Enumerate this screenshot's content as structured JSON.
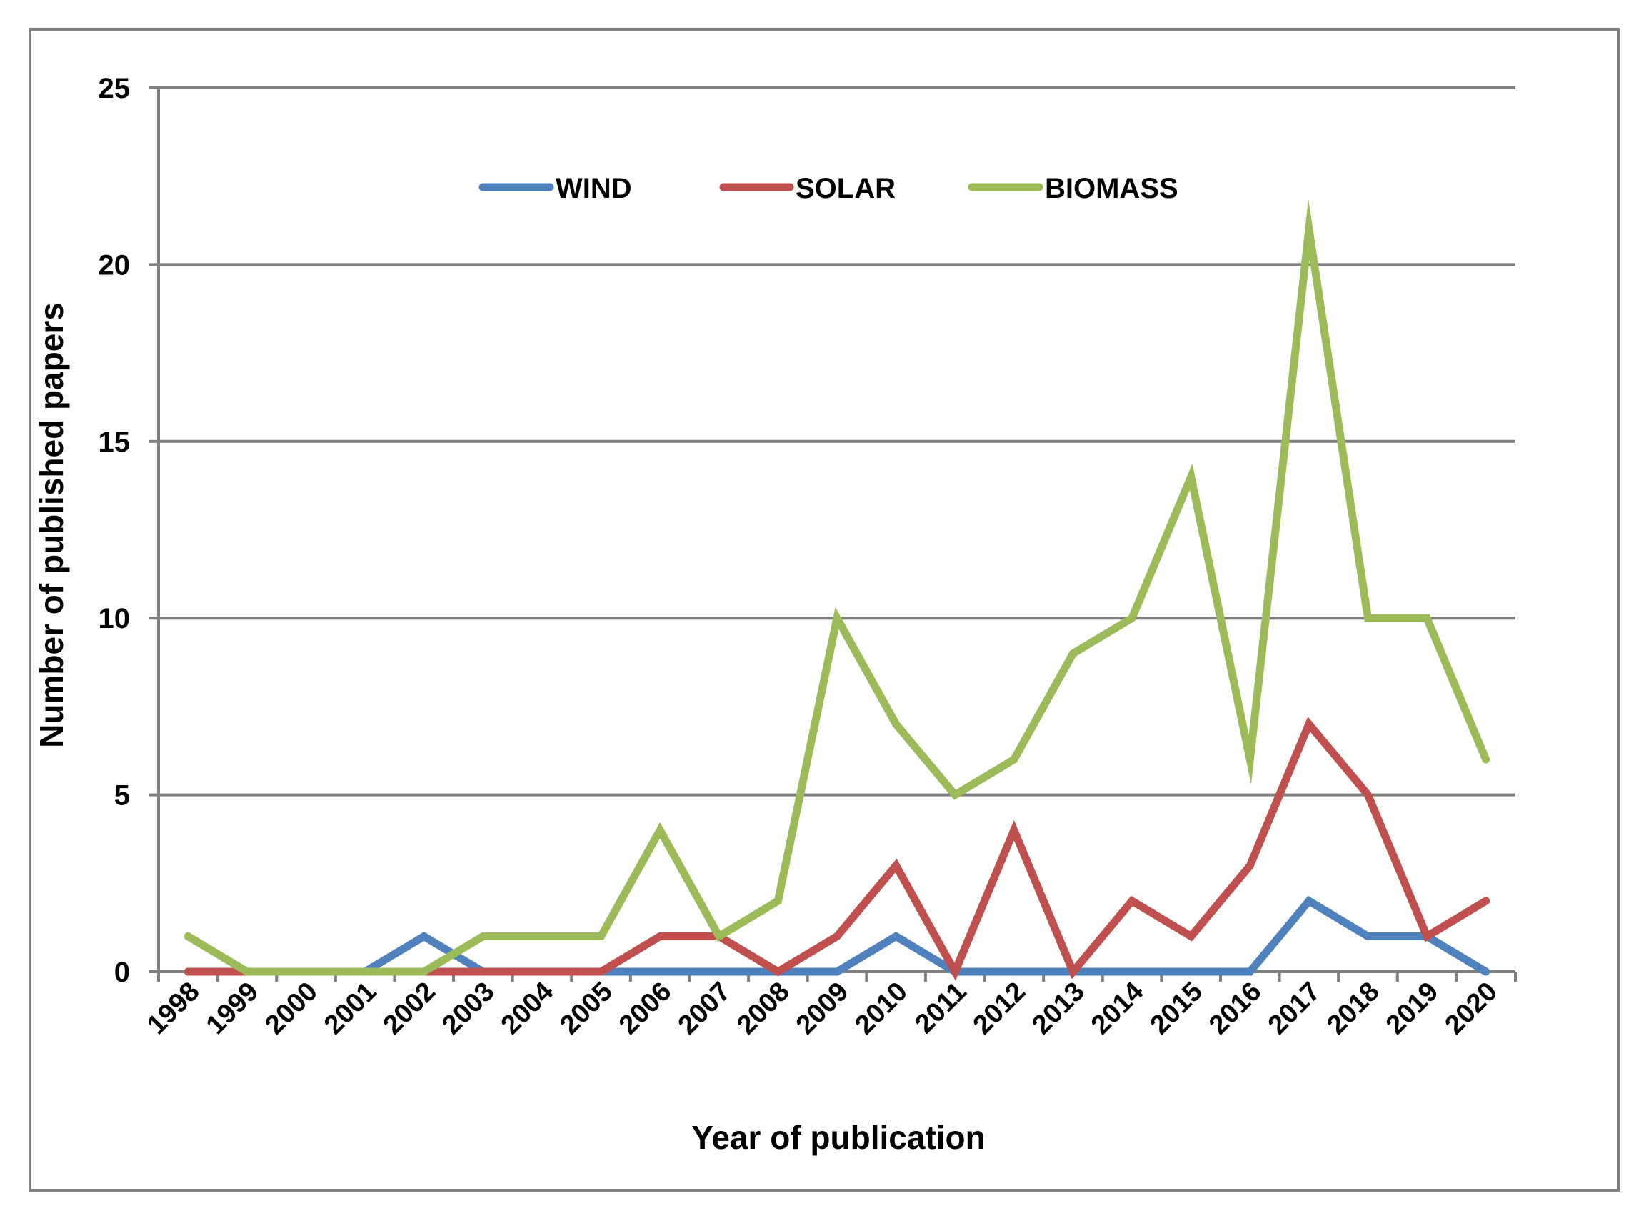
{
  "chart_data": {
    "type": "line",
    "title": "",
    "xlabel": "Year of publication",
    "ylabel": "Number of published papers",
    "categories": [
      "1998",
      "1999",
      "2000",
      "2001",
      "2002",
      "2003",
      "2004",
      "2005",
      "2006",
      "2007",
      "2008",
      "2009",
      "2010",
      "2011",
      "2012",
      "2013",
      "2014",
      "2015",
      "2016",
      "2017",
      "2018",
      "2019",
      "2020"
    ],
    "ylim": [
      0,
      25
    ],
    "yticks": [
      "0",
      "5",
      "10",
      "15",
      "20",
      "25"
    ],
    "grid": true,
    "legend_position": "top-center",
    "series": [
      {
        "name": "WIND",
        "color": "#4f81bd",
        "values": [
          0,
          0,
          0,
          0,
          1,
          0,
          0,
          0,
          0,
          0,
          0,
          0,
          1,
          0,
          0,
          0,
          0,
          0,
          0,
          2,
          1,
          1,
          0
        ]
      },
      {
        "name": "SOLAR",
        "color": "#c0504d",
        "values": [
          0,
          0,
          0,
          0,
          0,
          0,
          0,
          0,
          1,
          1,
          0,
          1,
          3,
          0,
          4,
          0,
          2,
          1,
          3,
          7,
          5,
          1,
          2
        ]
      },
      {
        "name": "BIOMASS",
        "color": "#9bbb59",
        "values": [
          1,
          0,
          0,
          0,
          0,
          1,
          1,
          1,
          4,
          1,
          2,
          10,
          7,
          5,
          6,
          9,
          10,
          14,
          6,
          21,
          10,
          10,
          6
        ]
      }
    ]
  }
}
